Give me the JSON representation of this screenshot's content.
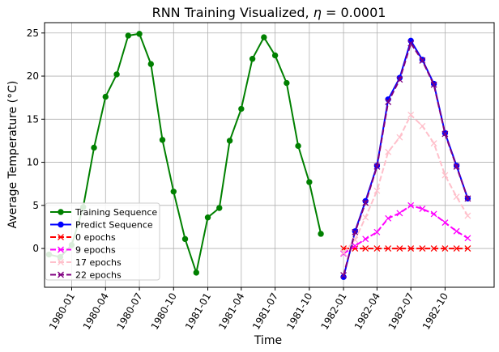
{
  "chart_data": {
    "type": "line",
    "title_prefix": "RNN Training Visualized, ",
    "title_eta": "η",
    "title_suffix": " = 0.0001",
    "xlabel": "Time",
    "ylabel": "Average Temperature (°C)",
    "ylim": [
      -4.5,
      26.2
    ],
    "xlim": [
      "1979-10-20",
      "1983-02-10"
    ],
    "grid": true,
    "legend_position": "lower-left",
    "x_ticks": [
      "1980-01",
      "1980-04",
      "1980-07",
      "1980-10",
      "1981-01",
      "1981-04",
      "1981-07",
      "1981-10",
      "1982-01",
      "1982-04",
      "1982-07",
      "1982-10"
    ],
    "y_ticks": [
      0,
      5,
      10,
      15,
      20,
      25
    ],
    "series": [
      {
        "name": "Training Sequence",
        "color": "#008000",
        "marker": "circle",
        "dash": "solid",
        "x": [
          "1979-11",
          "1979-12",
          "1980-01",
          "1980-02",
          "1980-03",
          "1980-04",
          "1980-05",
          "1980-06",
          "1980-07",
          "1980-08",
          "1980-09",
          "1980-10",
          "1980-11",
          "1980-12",
          "1981-01",
          "1981-02",
          "1981-03",
          "1981-04",
          "1981-05",
          "1981-06",
          "1981-07",
          "1981-08",
          "1981-09",
          "1981-10",
          "1981-11",
          "1981-12"
        ],
        "y": [
          -0.7,
          -1.0,
          0.4,
          4.8,
          11.7,
          17.6,
          20.2,
          24.7,
          24.9,
          21.4,
          12.6,
          6.6,
          1.1,
          -2.8,
          3.6,
          4.7,
          12.5,
          16.2,
          22.0,
          24.5,
          22.4,
          19.2,
          11.9,
          7.7,
          1.7,
          null
        ]
      },
      {
        "name": "Predict Sequence",
        "color": "#0000ff",
        "marker": "circle",
        "dash": "solid",
        "x": [
          "1982-01",
          "1982-02",
          "1982-03",
          "1982-04",
          "1982-05",
          "1982-06",
          "1982-07",
          "1982-08",
          "1982-09",
          "1982-10",
          "1982-11",
          "1982-12"
        ],
        "y": [
          -3.3,
          2.0,
          5.5,
          9.6,
          17.3,
          19.8,
          24.1,
          21.9,
          19.1,
          13.4,
          9.6,
          5.8
        ]
      },
      {
        "name": "0 epochs",
        "color": "#ff0000",
        "marker": "x",
        "dash": "dashed",
        "x": [
          "1982-01",
          "1982-02",
          "1982-03",
          "1982-04",
          "1982-05",
          "1982-06",
          "1982-07",
          "1982-08",
          "1982-09",
          "1982-10",
          "1982-11",
          "1982-12"
        ],
        "y": [
          0,
          0,
          0,
          0,
          0,
          0,
          0,
          0,
          0,
          0,
          0,
          0
        ]
      },
      {
        "name": "9 epochs",
        "color": "#ff00ff",
        "marker": "x",
        "dash": "dashed",
        "x": [
          "1982-01",
          "1982-02",
          "1982-03",
          "1982-04",
          "1982-05",
          "1982-06",
          "1982-07",
          "1982-08",
          "1982-09",
          "1982-10",
          "1982-11",
          "1982-12"
        ],
        "y": [
          -0.6,
          0.3,
          1.1,
          1.9,
          3.5,
          4.1,
          5.0,
          4.6,
          4.0,
          3.0,
          2.0,
          1.2
        ]
      },
      {
        "name": "17 epochs",
        "color": "#ffc0cb",
        "marker": "x",
        "dash": "dashed",
        "x": [
          "1982-01",
          "1982-02",
          "1982-03",
          "1982-04",
          "1982-05",
          "1982-06",
          "1982-07",
          "1982-08",
          "1982-09",
          "1982-10",
          "1982-11",
          "1982-12"
        ],
        "y": [
          -0.5,
          1.0,
          3.6,
          6.7,
          11.2,
          12.9,
          15.5,
          14.2,
          12.2,
          8.5,
          6.0,
          3.8
        ]
      },
      {
        "name": "22 epochs",
        "color": "#800080",
        "marker": "x",
        "dash": "dashed",
        "x": [
          "1982-01",
          "1982-02",
          "1982-03",
          "1982-04",
          "1982-05",
          "1982-06",
          "1982-07",
          "1982-08",
          "1982-09",
          "1982-10",
          "1982-11",
          "1982-12"
        ],
        "y": [
          -3.1,
          1.9,
          5.3,
          9.5,
          17.0,
          19.6,
          23.8,
          21.8,
          19.0,
          13.3,
          9.5,
          5.8
        ]
      }
    ]
  }
}
